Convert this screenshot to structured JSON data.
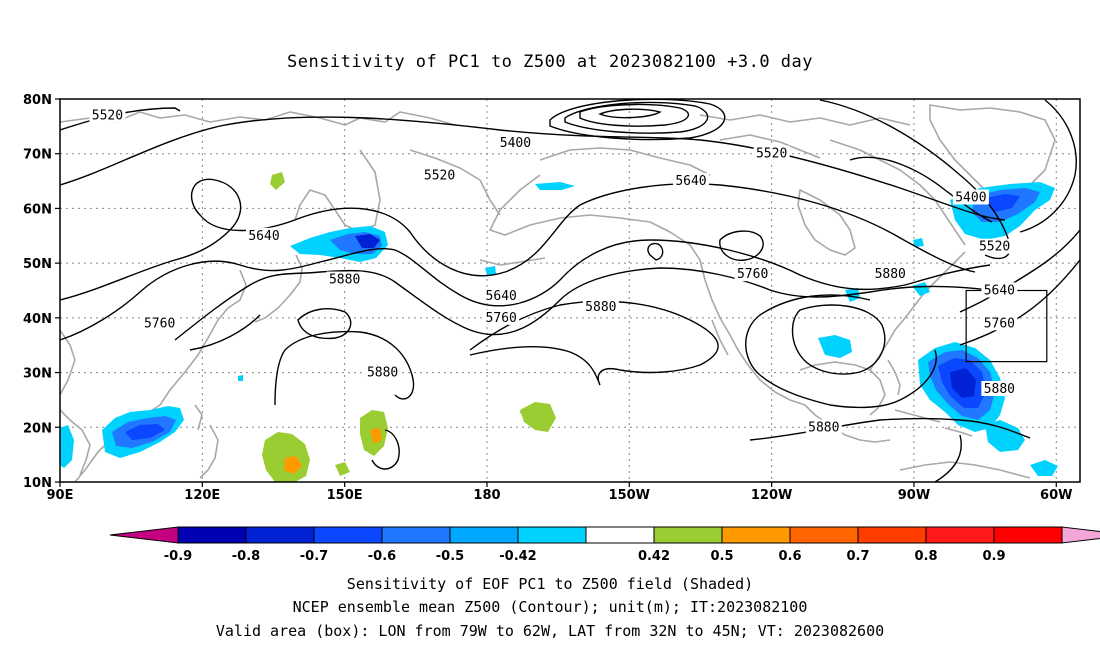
{
  "title": "Sensitivity of PC1 to Z500 at 2023082100 +3.0 day",
  "map": {
    "lon_range": [
      90,
      305
    ],
    "lat_range": [
      10,
      80
    ],
    "lat_ticks": [
      {
        "value": 80,
        "label": "80N"
      },
      {
        "value": 70,
        "label": "70N"
      },
      {
        "value": 60,
        "label": "60N"
      },
      {
        "value": 50,
        "label": "50N"
      },
      {
        "value": 40,
        "label": "40N"
      },
      {
        "value": 30,
        "label": "30N"
      },
      {
        "value": 20,
        "label": "20N"
      },
      {
        "value": 10,
        "label": "10N"
      }
    ],
    "lon_ticks": [
      {
        "value": 90,
        "label": "90E"
      },
      {
        "value": 120,
        "label": "120E"
      },
      {
        "value": 150,
        "label": "150E"
      },
      {
        "value": 180,
        "label": "180"
      },
      {
        "value": 210,
        "label": "150W"
      },
      {
        "value": 240,
        "label": "120W"
      },
      {
        "value": 270,
        "label": "90W"
      },
      {
        "value": 300,
        "label": "60W"
      }
    ],
    "grid": "dotted",
    "valid_box": {
      "lon": [
        281,
        298
      ],
      "lat": [
        32,
        45
      ]
    },
    "contour_labels": [
      {
        "text": "5520",
        "lon": 100,
        "lat": 77
      },
      {
        "text": "5400",
        "lon": 186,
        "lat": 72
      },
      {
        "text": "5520",
        "lon": 240,
        "lat": 70
      },
      {
        "text": "5520",
        "lon": 170,
        "lat": 66
      },
      {
        "text": "5640",
        "lon": 223,
        "lat": 65
      },
      {
        "text": "5400",
        "lon": 282,
        "lat": 62
      },
      {
        "text": "5640",
        "lon": 133,
        "lat": 55
      },
      {
        "text": "5520",
        "lon": 287,
        "lat": 53
      },
      {
        "text": "5880",
        "lon": 150,
        "lat": 47
      },
      {
        "text": "5760",
        "lon": 236,
        "lat": 48
      },
      {
        "text": "5880",
        "lon": 265,
        "lat": 48
      },
      {
        "text": "5640",
        "lon": 183,
        "lat": 44
      },
      {
        "text": "5880",
        "lon": 204,
        "lat": 42
      },
      {
        "text": "5640",
        "lon": 288,
        "lat": 45
      },
      {
        "text": "5760",
        "lon": 111,
        "lat": 39
      },
      {
        "text": "5760",
        "lon": 183,
        "lat": 40
      },
      {
        "text": "5760",
        "lon": 288,
        "lat": 39
      },
      {
        "text": "5880",
        "lon": 158,
        "lat": 30
      },
      {
        "text": "5880",
        "lon": 288,
        "lat": 27
      },
      {
        "text": "5880",
        "lon": 251,
        "lat": 20
      }
    ]
  },
  "colorbar": {
    "colors": [
      "#c20080",
      "#0000b3",
      "#0022d4",
      "#0a47ff",
      "#1f78ff",
      "#00a8ff",
      "#00d2ff",
      "#ffffff",
      "#9acd32",
      "#ff9900",
      "#ff6600",
      "#ff3d00",
      "#ff1a1a",
      "#ff0000",
      "#f3a6d8"
    ],
    "labels": [
      "-0.9",
      "-0.8",
      "-0.7",
      "-0.6",
      "-0.5",
      "-0.42",
      "0.42",
      "0.5",
      "0.6",
      "0.7",
      "0.8",
      "0.9"
    ]
  },
  "caption": {
    "line1": "Sensitivity of EOF PC1 to Z500 field (Shaded)",
    "line2": "NCEP ensemble mean Z500 (Contour); unit(m); IT:2023082100",
    "line3": "Valid area (box): LON from 79W to 62W, LAT from 32N to 45N; VT: 2023082600"
  }
}
